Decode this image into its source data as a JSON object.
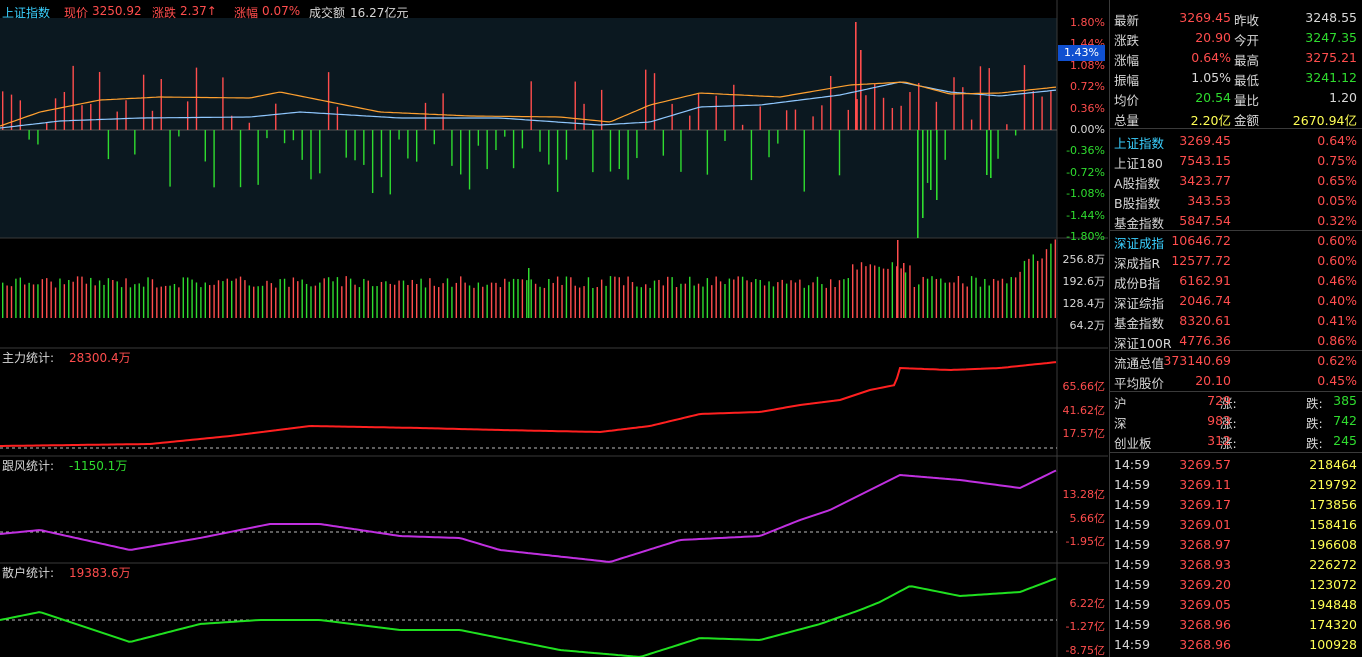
{
  "main": {
    "title": "上证指数",
    "price_label": "现价",
    "price": "3250.92",
    "change_label": "涨跌",
    "change": "2.37↑",
    "pct_label": "涨幅",
    "pct": "0.07%",
    "turnover_label": "成交额",
    "turnover": "16.27亿元",
    "cursor_pct": "1.43%",
    "pct_axis": [
      "1.80%",
      "1.44%",
      "1.08%",
      "0.72%",
      "0.36%",
      "0.00%",
      "-0.36%",
      "-0.72%",
      "-1.08%",
      "-1.44%",
      "-1.80%"
    ],
    "vol_axis": [
      "256.8万",
      "192.6万",
      "128.4万",
      "64.2万"
    ]
  },
  "panels": [
    {
      "label": "主力统计:",
      "value": "28300.4万",
      "color": "#ff2020",
      "axis": [
        "65.66亿",
        "41.62亿",
        "17.57亿"
      ]
    },
    {
      "label": "跟风统计:",
      "value": "-1150.1万",
      "color": "#c030e0",
      "axis": [
        "13.28亿",
        "5.66亿",
        "-1.95亿"
      ]
    },
    {
      "label": "散户统计:",
      "value": "19383.6万",
      "color": "#20e020",
      "axis": [
        "6.22亿",
        "-1.27亿",
        "-8.75亿"
      ]
    }
  ],
  "quote": [
    {
      "l1": "最新",
      "v1": "3269.45",
      "c1": "up",
      "l2": "昨收",
      "v2": "3248.55",
      "c2": "wh"
    },
    {
      "l1": "涨跌",
      "v1": "20.90",
      "c1": "up",
      "l2": "今开",
      "v2": "3247.35",
      "c2": "dn"
    },
    {
      "l1": "涨幅",
      "v1": "0.64%",
      "c1": "up",
      "l2": "最高",
      "v2": "3275.21",
      "c2": "up"
    },
    {
      "l1": "振幅",
      "v1": "1.05%",
      "c1": "wh",
      "l2": "最低",
      "v2": "3241.12",
      "c2": "dn"
    },
    {
      "l1": "均价",
      "v1": "20.54",
      "c1": "dn",
      "l2": "量比",
      "v2": "1.20",
      "c2": "wh"
    },
    {
      "l1": "总量",
      "v1": "2.20亿",
      "c1": "yl",
      "l2": "金额",
      "v2": "2670.94亿",
      "c2": "yl"
    }
  ],
  "indices1": [
    {
      "name": "上证指数",
      "val": "3269.45",
      "pct": "0.64%",
      "cy": true
    },
    {
      "name": "上证180",
      "val": "7543.15",
      "pct": "0.75%"
    },
    {
      "name": "A股指数",
      "val": "3423.77",
      "pct": "0.65%"
    },
    {
      "name": "B股指数",
      "val": "343.53",
      "pct": "0.05%"
    },
    {
      "name": "基金指数",
      "val": "5847.54",
      "pct": "0.32%"
    }
  ],
  "indices2": [
    {
      "name": "深证成指",
      "val": "10646.72",
      "pct": "0.60%",
      "cy": true
    },
    {
      "name": "深成指R",
      "val": "12577.72",
      "pct": "0.60%"
    },
    {
      "name": "成份B指",
      "val": "6162.91",
      "pct": "0.46%"
    },
    {
      "name": "深证综指",
      "val": "2046.74",
      "pct": "0.40%"
    },
    {
      "name": "基金指数",
      "val": "8320.61",
      "pct": "0.41%"
    },
    {
      "name": "深证100R",
      "val": "4776.36",
      "pct": "0.86%"
    }
  ],
  "stats": [
    {
      "name": "流通总值",
      "val": "373140.69",
      "pct": "0.62%"
    },
    {
      "name": "平均股价",
      "val": "20.10",
      "pct": "0.45%"
    }
  ],
  "breadth": [
    {
      "name": "沪",
      "up_label": "涨:",
      "up": "729",
      "dn_label": "跌:",
      "dn": "385"
    },
    {
      "name": "深",
      "up_label": "涨:",
      "up": "983",
      "dn_label": "跌:",
      "dn": "742"
    },
    {
      "name": "创业板",
      "up_label": "涨:",
      "up": "312",
      "dn_label": "跌:",
      "dn": "245"
    }
  ],
  "ticks": [
    {
      "time": "14:59",
      "price": "3269.57",
      "vol": "218464"
    },
    {
      "time": "14:59",
      "price": "3269.11",
      "vol": "219792"
    },
    {
      "time": "14:59",
      "price": "3269.17",
      "vol": "173856"
    },
    {
      "time": "14:59",
      "price": "3269.01",
      "vol": "158416"
    },
    {
      "time": "14:59",
      "price": "3268.97",
      "vol": "196608"
    },
    {
      "time": "14:59",
      "price": "3268.93",
      "vol": "226272"
    },
    {
      "time": "14:59",
      "price": "3269.20",
      "vol": "123072"
    },
    {
      "time": "14:59",
      "price": "3269.05",
      "vol": "194848"
    },
    {
      "time": "14:59",
      "price": "3268.96",
      "vol": "174320"
    },
    {
      "time": "14:59",
      "price": "3268.96",
      "vol": "100928"
    }
  ],
  "colors": {
    "up": "#ff4d4d",
    "down": "#2fdc2f",
    "index_line": "#ffffff",
    "avg_line": "#ffa030",
    "cursor": "#1050d0"
  }
}
